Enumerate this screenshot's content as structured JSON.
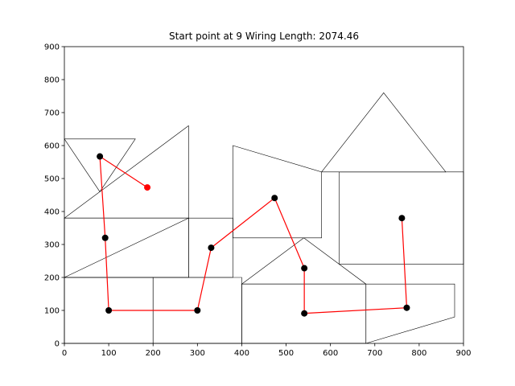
{
  "chart_data": {
    "type": "line",
    "title": "Start point at 9 Wiring Length: 2074.46",
    "xlabel": "",
    "ylabel": "",
    "xlim": [
      0,
      900
    ],
    "ylim": [
      0,
      900
    ],
    "xticks": [
      0,
      100,
      200,
      300,
      400,
      500,
      600,
      700,
      800,
      900
    ],
    "yticks": [
      0,
      100,
      200,
      300,
      400,
      500,
      600,
      700,
      800,
      900
    ],
    "grid": false,
    "wiring_path": {
      "color": "#ff0000",
      "points": [
        [
          187,
          473
        ],
        [
          80,
          567
        ],
        [
          92,
          320
        ],
        [
          100,
          100
        ],
        [
          300,
          100
        ],
        [
          331,
          290
        ],
        [
          474,
          441
        ],
        [
          541,
          228
        ],
        [
          541,
          91
        ],
        [
          772,
          108
        ],
        [
          761,
          380
        ]
      ]
    },
    "start_point_color": "#ff0000",
    "node_color": "#000000",
    "polygons": [
      [
        [
          0,
          620
        ],
        [
          160,
          620
        ],
        [
          80,
          460
        ]
      ],
      [
        [
          0,
          380
        ],
        [
          280,
          660
        ],
        [
          280,
          380
        ]
      ],
      [
        [
          0,
          200
        ],
        [
          280,
          380
        ],
        [
          280,
          200
        ]
      ],
      [
        [
          0,
          380
        ],
        [
          280,
          380
        ],
        [
          280,
          200
        ],
        [
          0,
          200
        ]
      ],
      [
        [
          280,
          380
        ],
        [
          380,
          380
        ],
        [
          380,
          200
        ],
        [
          280,
          200
        ]
      ],
      [
        [
          380,
          600
        ],
        [
          380,
          320
        ],
        [
          580,
          320
        ],
        [
          580,
          520
        ]
      ],
      [
        [
          580,
          520
        ],
        [
          720,
          760
        ],
        [
          860,
          520
        ]
      ],
      [
        [
          620,
          520
        ],
        [
          900,
          520
        ],
        [
          900,
          240
        ],
        [
          620,
          240
        ]
      ],
      [
        [
          0,
          200
        ],
        [
          200,
          200
        ],
        [
          200,
          0
        ],
        [
          0,
          0
        ]
      ],
      [
        [
          200,
          200
        ],
        [
          400,
          200
        ],
        [
          400,
          0
        ],
        [
          200,
          0
        ]
      ],
      [
        [
          400,
          180
        ],
        [
          540,
          320
        ],
        [
          680,
          180
        ]
      ],
      [
        [
          400,
          180
        ],
        [
          680,
          180
        ],
        [
          680,
          0
        ],
        [
          400,
          0
        ]
      ],
      [
        [
          680,
          180
        ],
        [
          880,
          180
        ],
        [
          880,
          80
        ],
        [
          680,
          0
        ]
      ]
    ]
  }
}
